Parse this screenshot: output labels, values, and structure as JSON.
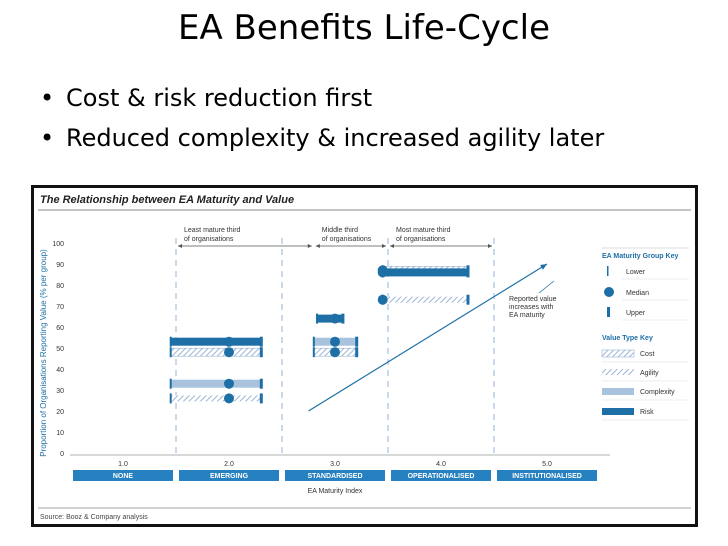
{
  "slide": {
    "title": "EA Benefits Life-Cycle",
    "bullets": [
      "Cost & risk reduction first",
      "Reduced complexity & increased agility later"
    ]
  },
  "colors": {
    "dark_blue": "#1d6fa5",
    "light_blue": "#a9c3df",
    "hatch_blue": "#9bb5d4",
    "axis_label_blue": "#1d6fa5",
    "category_bar": "#2780c0",
    "divider": "#b6cde6"
  },
  "chart_data": {
    "type": "range",
    "title": "The Relationship between EA Maturity and Value",
    "xlabel": "EA Maturity Index",
    "ylabel": "Proportion of Organisations Reporting Value (% per group)",
    "ylim": [
      0,
      100
    ],
    "xlim": [
      0.5,
      5.5
    ],
    "yticks": [
      "0",
      "10",
      "20",
      "30",
      "40",
      "50",
      "60",
      "70",
      "80",
      "90",
      "100"
    ],
    "xticks": [
      {
        "value": 1.0,
        "label": "1.0",
        "category": "NONE"
      },
      {
        "value": 2.0,
        "label": "2.0",
        "category": "EMERGING"
      },
      {
        "value": 3.0,
        "label": "3.0",
        "category": "STANDARDISED"
      },
      {
        "value": 4.0,
        "label": "4.0",
        "category": "OPERATIONALISED"
      },
      {
        "value": 5.0,
        "label": "5.0",
        "category": "INSTITUTIONALISED"
      }
    ],
    "groups": [
      {
        "label": "Least mature third of organisations",
        "x_from": 1.5,
        "x_to": 2.8
      },
      {
        "label": "Middle third of organisations",
        "x_from": 2.8,
        "x_to": 3.5
      },
      {
        "label": "Most mature third of organisations",
        "x_from": 3.5,
        "x_to": 4.5
      }
    ],
    "series": [
      {
        "name": "Cost",
        "style": "cost",
        "ranges": [
          {
            "x_from": 1.45,
            "x_to": 2.3,
            "median_x": 2.0,
            "value": 48
          },
          {
            "x_from": 2.8,
            "x_to": 3.2,
            "median_x": 3.0,
            "value": 48
          },
          {
            "x_from": 3.45,
            "x_to": 4.25,
            "median_x": 3.45,
            "value": 87
          }
        ]
      },
      {
        "name": "Agility",
        "style": "agility",
        "ranges": [
          {
            "x_from": 1.45,
            "x_to": 2.3,
            "median_x": 2.0,
            "value": 26
          },
          {
            "x_from": 3.45,
            "x_to": 4.25,
            "median_x": 3.45,
            "value": 73
          }
        ]
      },
      {
        "name": "Complexity",
        "style": "complexity",
        "ranges": [
          {
            "x_from": 1.45,
            "x_to": 2.3,
            "median_x": 2.0,
            "value": 33
          },
          {
            "x_from": 2.8,
            "x_to": 3.2,
            "median_x": 3.0,
            "value": 53
          }
        ]
      },
      {
        "name": "Risk",
        "style": "risk",
        "ranges": [
          {
            "x_from": 1.45,
            "x_to": 2.3,
            "median_x": 2.0,
            "value": 53
          },
          {
            "x_from": 2.83,
            "x_to": 3.07,
            "median_x": 3.0,
            "value": 64
          },
          {
            "x_from": 3.45,
            "x_to": 4.25,
            "median_x": 3.45,
            "value": 86
          }
        ]
      }
    ],
    "trend": {
      "from": [
        2.75,
        20
      ],
      "to": [
        5.0,
        90
      ]
    },
    "annotation": "Reported value increases with EA maturity",
    "maturity_key": {
      "title": "EA Maturity Group Key",
      "items": [
        "Lower",
        "Median",
        "Upper"
      ]
    },
    "value_type_key": {
      "title": "Value Type Key",
      "items": [
        "Cost",
        "Agility",
        "Complexity",
        "Risk"
      ]
    },
    "source": "Source: Booz & Company analysis",
    "grid": false
  }
}
